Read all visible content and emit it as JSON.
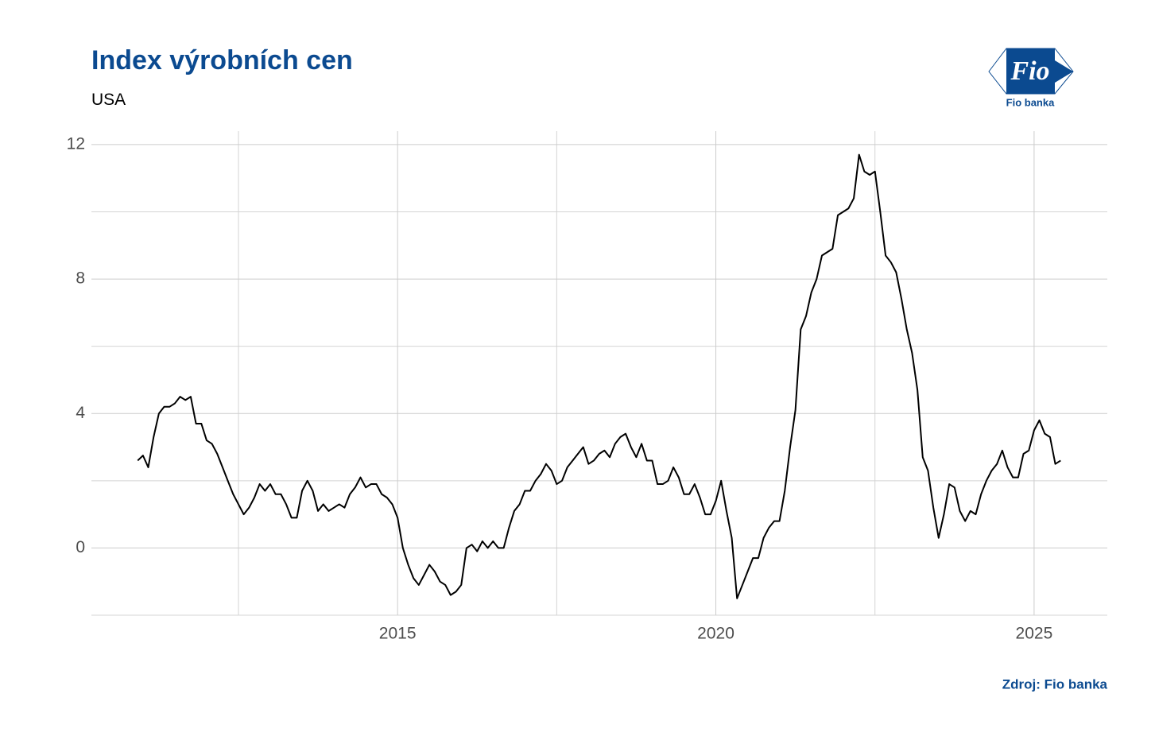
{
  "chart_data": {
    "type": "line",
    "title": "Index výrobních cen",
    "subtitle": "USA",
    "source": "Zdroj: Fio banka",
    "logo": {
      "mark": "Fio",
      "name": "Fio banka"
    },
    "color": "#000000",
    "grid": true,
    "xlim": [
      2010.19,
      2026.15
    ],
    "xticks": [
      2015,
      2020,
      2025
    ],
    "xminor": [
      2012.5,
      2017.5,
      2022.5
    ],
    "ylim": [
      -2,
      12.4
    ],
    "yticks": [
      0,
      4,
      8,
      12
    ],
    "yminor": [
      -2,
      2,
      6,
      10
    ],
    "x": [
      2010.917,
      2011.0,
      2011.083,
      2011.167,
      2011.25,
      2011.333,
      2011.417,
      2011.5,
      2011.583,
      2011.667,
      2011.75,
      2011.833,
      2011.917,
      2012.0,
      2012.083,
      2012.167,
      2012.25,
      2012.333,
      2012.417,
      2012.5,
      2012.583,
      2012.667,
      2012.75,
      2012.833,
      2012.917,
      2013.0,
      2013.083,
      2013.167,
      2013.25,
      2013.333,
      2013.417,
      2013.5,
      2013.583,
      2013.667,
      2013.75,
      2013.833,
      2013.917,
      2014.0,
      2014.083,
      2014.167,
      2014.25,
      2014.333,
      2014.417,
      2014.5,
      2014.583,
      2014.667,
      2014.75,
      2014.833,
      2014.917,
      2015.0,
      2015.083,
      2015.167,
      2015.25,
      2015.333,
      2015.417,
      2015.5,
      2015.583,
      2015.667,
      2015.75,
      2015.833,
      2015.917,
      2016.0,
      2016.083,
      2016.167,
      2016.25,
      2016.333,
      2016.417,
      2016.5,
      2016.583,
      2016.667,
      2016.75,
      2016.833,
      2016.917,
      2017.0,
      2017.083,
      2017.167,
      2017.25,
      2017.333,
      2017.417,
      2017.5,
      2017.583,
      2017.667,
      2017.75,
      2017.833,
      2017.917,
      2018.0,
      2018.083,
      2018.167,
      2018.25,
      2018.333,
      2018.417,
      2018.5,
      2018.583,
      2018.667,
      2018.75,
      2018.833,
      2018.917,
      2019.0,
      2019.083,
      2019.167,
      2019.25,
      2019.333,
      2019.417,
      2019.5,
      2019.583,
      2019.667,
      2019.75,
      2019.833,
      2019.917,
      2020.0,
      2020.083,
      2020.167,
      2020.25,
      2020.333,
      2020.417,
      2020.5,
      2020.583,
      2020.667,
      2020.75,
      2020.833,
      2020.917,
      2021.0,
      2021.083,
      2021.167,
      2021.25,
      2021.333,
      2021.417,
      2021.5,
      2021.583,
      2021.667,
      2021.75,
      2021.833,
      2021.917,
      2022.0,
      2022.083,
      2022.167,
      2022.25,
      2022.333,
      2022.417,
      2022.5,
      2022.583,
      2022.667,
      2022.75,
      2022.833,
      2022.917,
      2023.0,
      2023.083,
      2023.167,
      2023.25,
      2023.333,
      2023.417,
      2023.5,
      2023.583,
      2023.667,
      2023.75,
      2023.833,
      2023.917,
      2024.0,
      2024.083,
      2024.167,
      2024.25,
      2024.333,
      2024.417,
      2024.5,
      2024.583,
      2024.667,
      2024.75,
      2024.833,
      2024.917,
      2025.0,
      2025.083,
      2025.167,
      2025.25,
      2025.333,
      2025.417
    ],
    "values": [
      2.6,
      2.75,
      2.4,
      3.3,
      4.0,
      4.2,
      4.2,
      4.3,
      4.5,
      4.4,
      4.5,
      3.7,
      3.7,
      3.2,
      3.1,
      2.8,
      2.4,
      2.0,
      1.6,
      1.3,
      1.0,
      1.2,
      1.5,
      1.9,
      1.7,
      1.9,
      1.6,
      1.6,
      1.3,
      0.9,
      0.9,
      1.7,
      2.0,
      1.7,
      1.1,
      1.3,
      1.1,
      1.2,
      1.3,
      1.2,
      1.6,
      1.8,
      2.1,
      1.8,
      1.9,
      1.9,
      1.6,
      1.5,
      1.3,
      0.9,
      0.0,
      -0.5,
      -0.9,
      -1.1,
      -0.8,
      -0.5,
      -0.7,
      -1.0,
      -1.1,
      -1.4,
      -1.3,
      -1.1,
      0.0,
      0.1,
      -0.1,
      0.2,
      0.0,
      0.2,
      0.0,
      0.0,
      0.6,
      1.1,
      1.3,
      1.7,
      1.7,
      2.0,
      2.2,
      2.5,
      2.3,
      1.9,
      2.0,
      2.4,
      2.6,
      2.8,
      3.0,
      2.5,
      2.6,
      2.8,
      2.9,
      2.7,
      3.1,
      3.3,
      3.4,
      3.0,
      2.7,
      3.1,
      2.6,
      2.6,
      1.9,
      1.9,
      2.0,
      2.4,
      2.1,
      1.6,
      1.6,
      1.9,
      1.5,
      1.0,
      1.0,
      1.4,
      2.0,
      1.1,
      0.3,
      -1.5,
      -1.1,
      -0.7,
      -0.3,
      -0.3,
      0.3,
      0.6,
      0.8,
      0.8,
      1.7,
      3.0,
      4.1,
      6.5,
      6.9,
      7.6,
      8.0,
      8.7,
      8.8,
      8.9,
      9.9,
      10.0,
      10.1,
      10.4,
      11.7,
      11.2,
      11.1,
      11.2,
      10.0,
      8.7,
      8.5,
      8.2,
      7.4,
      6.5,
      5.8,
      4.7,
      2.7,
      2.3,
      1.2,
      0.3,
      1.0,
      1.9,
      1.8,
      1.1,
      0.8,
      1.1,
      1.0,
      1.6,
      2.0,
      2.3,
      2.5,
      2.9,
      2.4,
      2.1,
      2.1,
      2.8,
      2.9,
      3.5,
      3.8,
      3.4,
      3.3,
      2.5,
      2.6
    ]
  }
}
